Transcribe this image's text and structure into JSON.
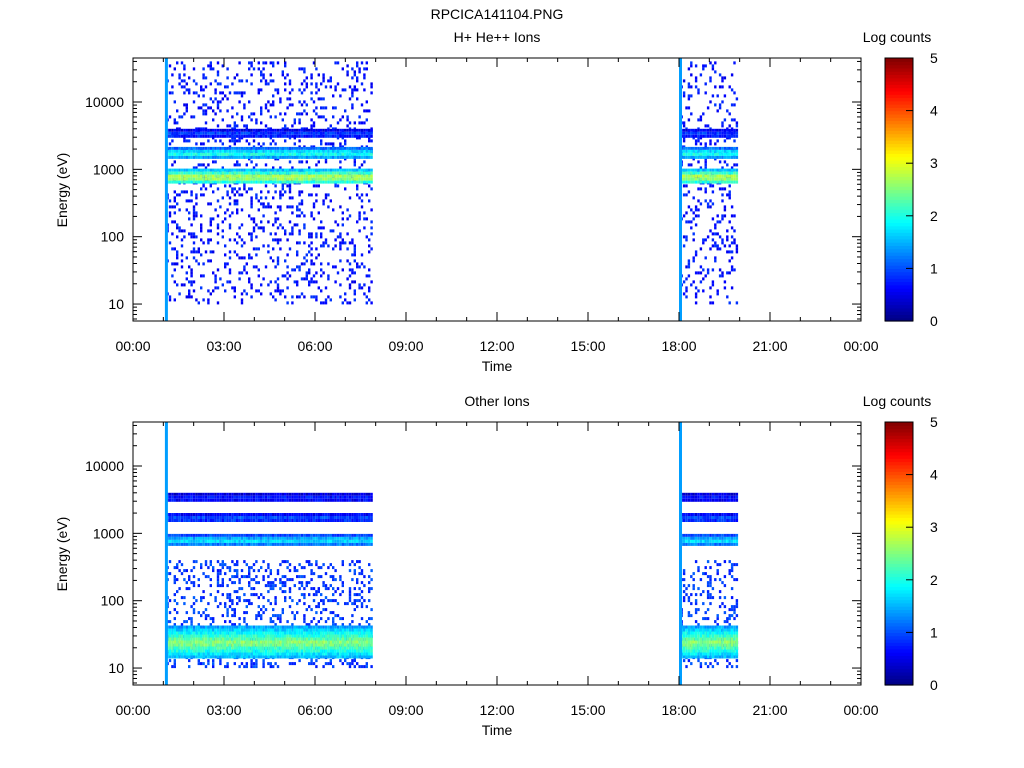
{
  "figure": {
    "title": "RPCICA141104.PNG"
  },
  "chart_data": [
    {
      "type": "heatmap",
      "title": "H+ He++ Ions",
      "xlabel": "Time",
      "ylabel": "Energy (eV)",
      "x_unit": "hours",
      "xlim": [
        0,
        24
      ],
      "ylim": [
        5.6,
        45000
      ],
      "y_scale": "log",
      "x_ticks": [
        {
          "v": 0,
          "label": "00:00"
        },
        {
          "v": 3,
          "label": "03:00"
        },
        {
          "v": 6,
          "label": "06:00"
        },
        {
          "v": 9,
          "label": "09:00"
        },
        {
          "v": 12,
          "label": "12:00"
        },
        {
          "v": 15,
          "label": "15:00"
        },
        {
          "v": 18,
          "label": "18:00"
        },
        {
          "v": 21,
          "label": "21:00"
        },
        {
          "v": 24,
          "label": "00:00"
        }
      ],
      "y_ticks": [
        {
          "v": 10,
          "label": "10"
        },
        {
          "v": 100,
          "label": "100"
        },
        {
          "v": 1000,
          "label": "1000"
        },
        {
          "v": 10000,
          "label": "10000"
        }
      ],
      "colorbar": {
        "label": "Log counts",
        "min": 0,
        "max": 5,
        "ticks": [
          0,
          1,
          2,
          3,
          4,
          5
        ]
      },
      "intervals": [
        [
          1.1,
          7.9
        ],
        [
          18.05,
          19.9
        ]
      ],
      "edge_spikes": [
        1.1,
        18.05
      ],
      "bands": [
        {
          "e": 800,
          "width": 0.055,
          "log_counts": 2.9
        },
        {
          "e": 1800,
          "width": 0.04,
          "log_counts": 2.1
        },
        {
          "e": 3500,
          "width": 0.03,
          "log_counts": 1.0
        }
      ],
      "background": {
        "e_min": 10,
        "e_max": 40000,
        "density": 0.18,
        "log_counts": 0.5
      }
    },
    {
      "type": "heatmap",
      "title": "Other Ions",
      "xlabel": "Time",
      "ylabel": "Energy (eV)",
      "x_unit": "hours",
      "xlim": [
        0,
        24
      ],
      "ylim": [
        5.6,
        45000
      ],
      "y_scale": "log",
      "x_ticks": [
        {
          "v": 0,
          "label": "00:00"
        },
        {
          "v": 3,
          "label": "03:00"
        },
        {
          "v": 6,
          "label": "06:00"
        },
        {
          "v": 9,
          "label": "09:00"
        },
        {
          "v": 12,
          "label": "12:00"
        },
        {
          "v": 15,
          "label": "15:00"
        },
        {
          "v": 18,
          "label": "18:00"
        },
        {
          "v": 21,
          "label": "21:00"
        },
        {
          "v": 24,
          "label": "00:00"
        }
      ],
      "y_ticks": [
        {
          "v": 10,
          "label": "10"
        },
        {
          "v": 100,
          "label": "100"
        },
        {
          "v": 1000,
          "label": "1000"
        },
        {
          "v": 10000,
          "label": "10000"
        }
      ],
      "colorbar": {
        "label": "Log counts",
        "min": 0,
        "max": 5,
        "ticks": [
          0,
          1,
          2,
          3,
          4,
          5
        ]
      },
      "intervals": [
        [
          1.1,
          7.9
        ],
        [
          18.05,
          19.9
        ]
      ],
      "edge_spikes": [
        1.1,
        18.05
      ],
      "bands": [
        {
          "e": 820,
          "width": 0.04,
          "log_counts": 1.8
        },
        {
          "e": 1750,
          "width": 0.03,
          "log_counts": 1.1
        },
        {
          "e": 3500,
          "width": 0.03,
          "log_counts": 0.8
        },
        {
          "e": 25,
          "width": 0.12,
          "log_counts": 2.6
        }
      ],
      "background": {
        "e_min": 10,
        "e_max": 400,
        "density": 0.25,
        "log_counts": 0.7
      }
    }
  ]
}
